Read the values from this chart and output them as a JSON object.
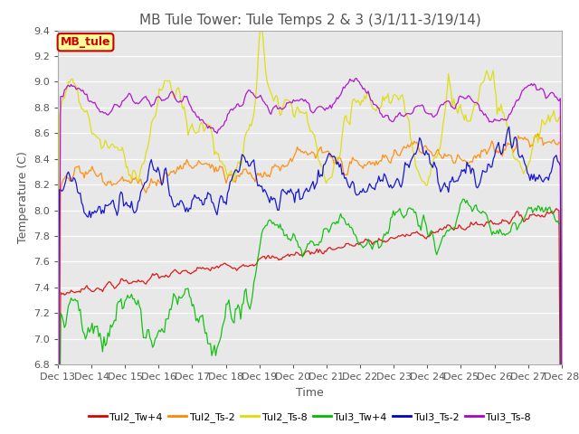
{
  "title": "MB Tule Tower: Tule Temps 2 & 3 (3/1/11-3/19/14)",
  "xlabel": "Time",
  "ylabel": "Temperature (C)",
  "ylim": [
    6.8,
    9.4
  ],
  "yticks": [
    6.8,
    7.0,
    7.2,
    7.4,
    7.6,
    7.8,
    8.0,
    8.2,
    8.4,
    8.6,
    8.8,
    9.0,
    9.2,
    9.4
  ],
  "xtick_labels": [
    "Dec 13",
    "Dec 14",
    "Dec 15",
    "Dec 16",
    "Dec 17",
    "Dec 18",
    "Dec 19",
    "Dec 20",
    "Dec 21",
    "Dec 22",
    "Dec 23",
    "Dec 24",
    "Dec 25",
    "Dec 26",
    "Dec 27",
    "Dec 28"
  ],
  "legend_box": {
    "text": "MB_tule",
    "facecolor": "#ffff99",
    "edgecolor": "#cc0000",
    "textcolor": "#cc0000"
  },
  "background_color": "#ffffff",
  "grid_color": "#d0d0d0",
  "title_fontsize": 11,
  "tick_fontsize": 8,
  "label_fontsize": 9,
  "legend_fontsize": 8
}
